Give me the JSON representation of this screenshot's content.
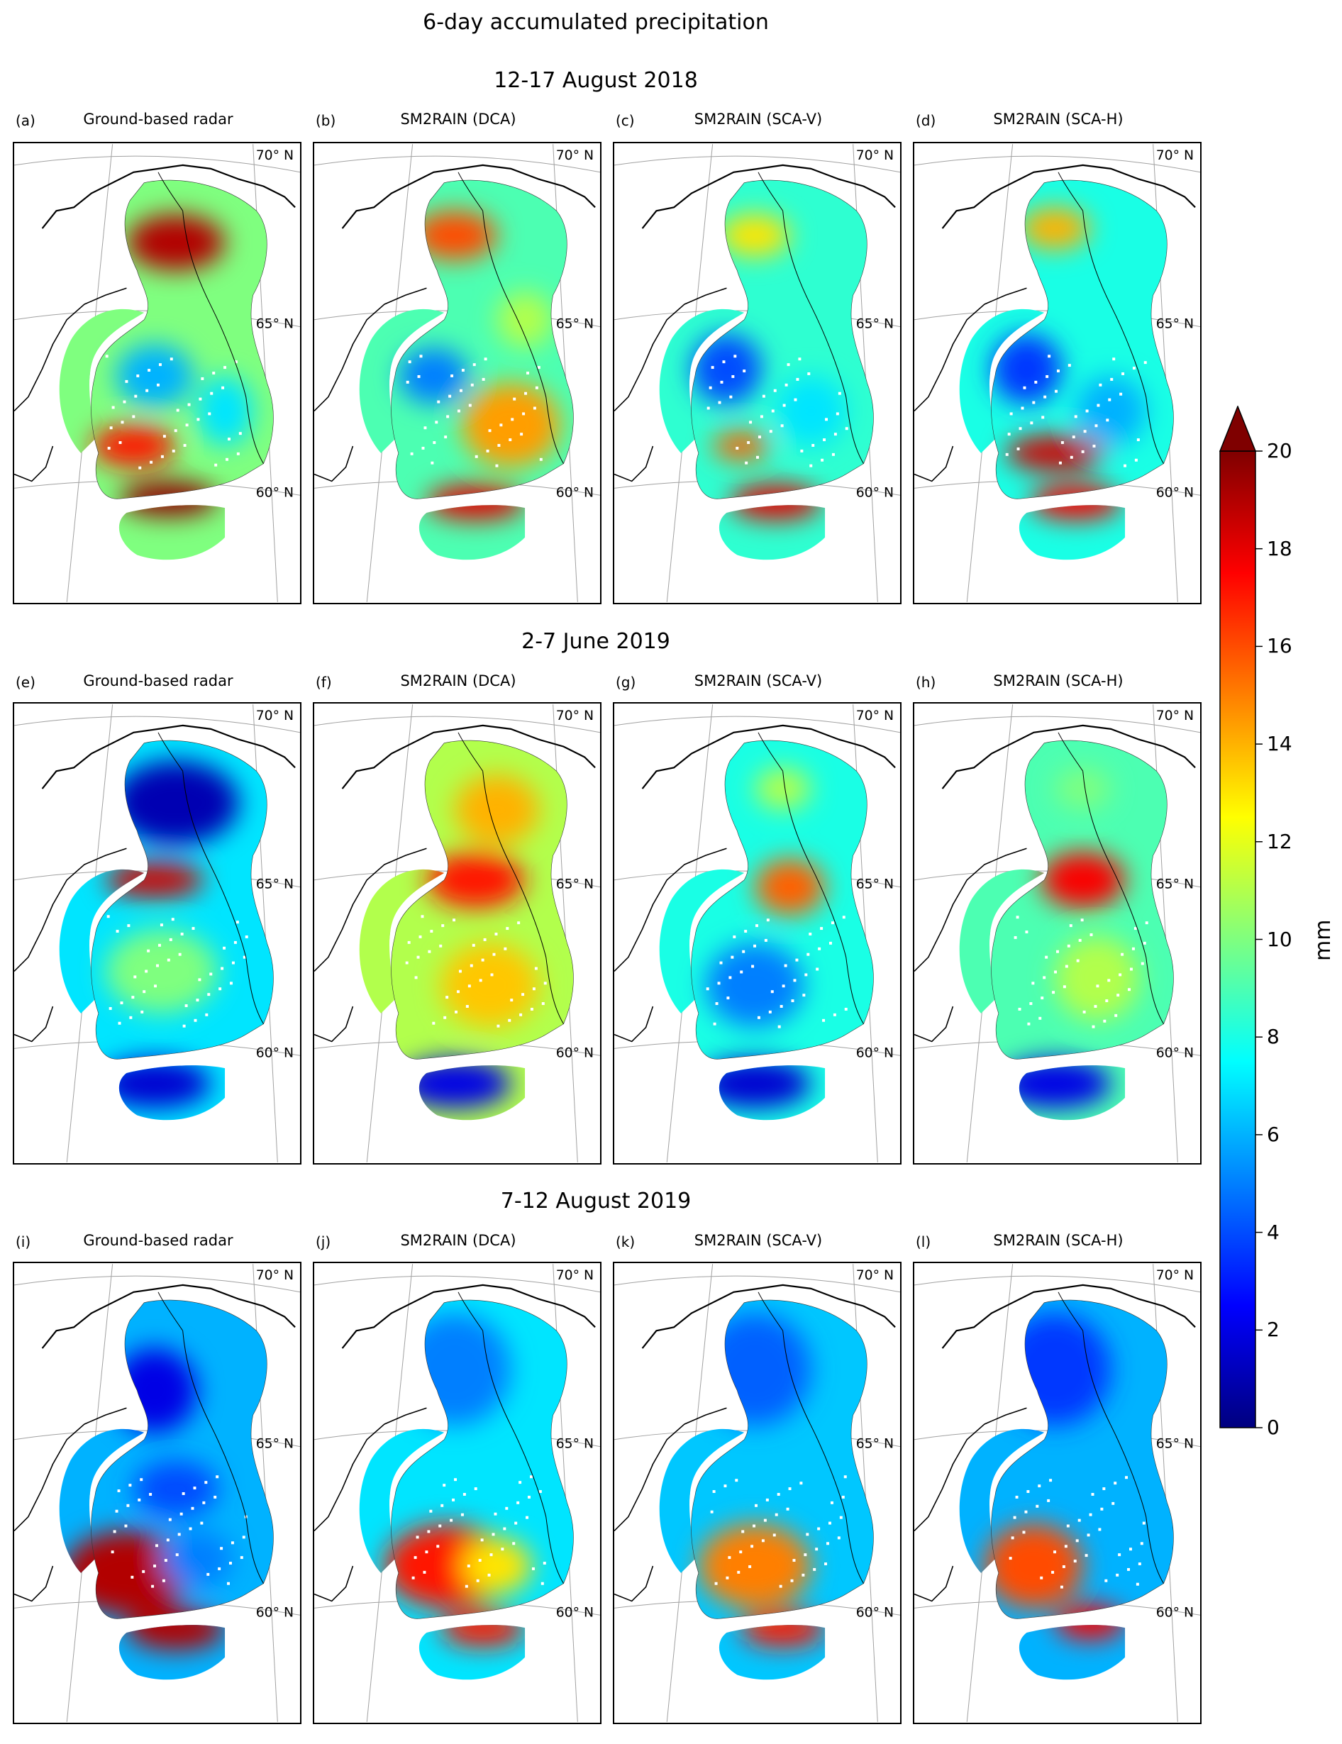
{
  "figure": {
    "title": "6-day accumulated precipitation",
    "periods": [
      {
        "title": "12-17 August 2018",
        "panels": [
          {
            "letter": "(a)",
            "title": "Ground-based radar"
          },
          {
            "letter": "(b)",
            "title": "SM2RAIN (DCA)"
          },
          {
            "letter": "(c)",
            "title": "SM2RAIN (SCA-V)"
          },
          {
            "letter": "(d)",
            "title": "SM2RAIN (SCA-H)"
          }
        ]
      },
      {
        "title": "2-7 June 2019",
        "panels": [
          {
            "letter": "(e)",
            "title": "Ground-based radar"
          },
          {
            "letter": "(f)",
            "title": "SM2RAIN (DCA)"
          },
          {
            "letter": "(g)",
            "title": "SM2RAIN (SCA-V)"
          },
          {
            "letter": "(h)",
            "title": "SM2RAIN (SCA-H)"
          }
        ]
      },
      {
        "title": "7-12 August 2019",
        "panels": [
          {
            "letter": "(i)",
            "title": "Ground-based radar"
          },
          {
            "letter": "(j)",
            "title": "SM2RAIN (DCA)"
          },
          {
            "letter": "(k)",
            "title": "SM2RAIN (SCA-V)"
          },
          {
            "letter": "(l)",
            "title": "SM2RAIN (SCA-H)"
          }
        ]
      }
    ],
    "latitude_labels": [
      "70° N",
      "65° N",
      "60° N"
    ]
  },
  "colorbar": {
    "label": "mm",
    "min": 0,
    "max": 20,
    "extend": "max",
    "ticks": [
      "0",
      "2",
      "4",
      "6",
      "8",
      "10",
      "12",
      "14",
      "16",
      "18",
      "20"
    ],
    "colormap": "jet",
    "stops": [
      "#00007f",
      "#0000ff",
      "#007fff",
      "#00ffff",
      "#7fff7f",
      "#ffff00",
      "#ff7f00",
      "#ff0000",
      "#7f0000"
    ]
  }
}
